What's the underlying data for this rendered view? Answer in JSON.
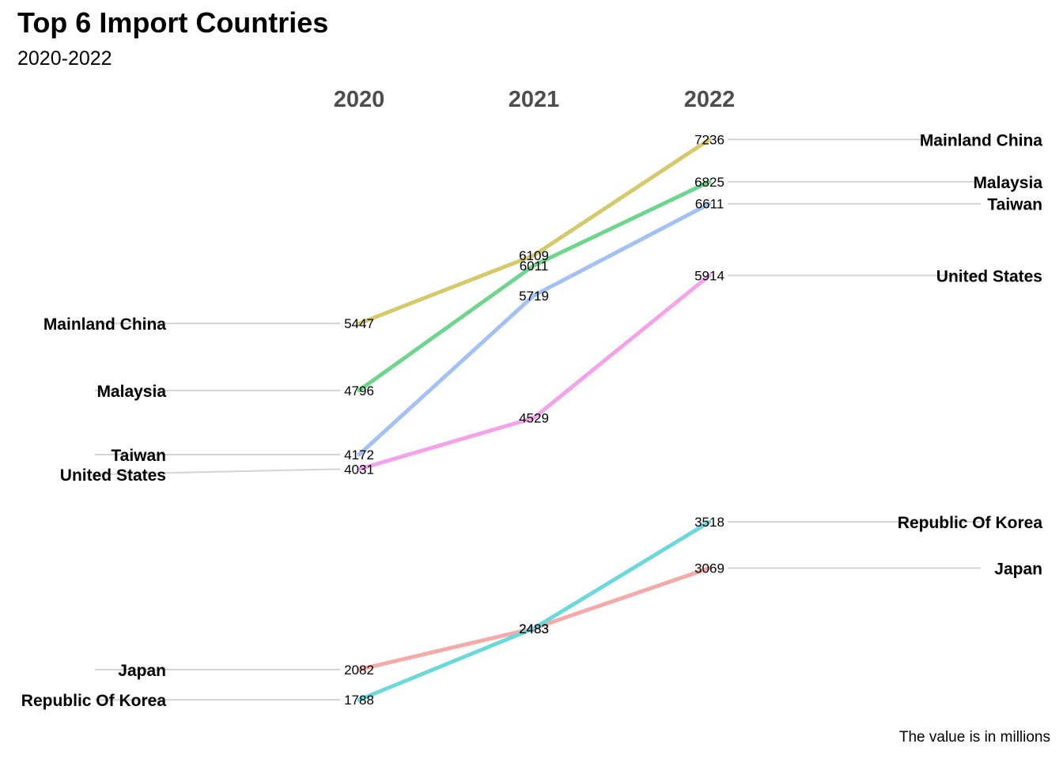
{
  "title": "Top 6 Import Countries",
  "subtitle": "2020-2022",
  "caption": "The value is in millions",
  "chart_data": {
    "type": "line",
    "title": "Top 6 Import Countries",
    "subtitle": "2020-2022",
    "categories": [
      "2020",
      "2021",
      "2022"
    ],
    "series": [
      {
        "name": "Mainland China",
        "values": [
          5447,
          6109,
          7236
        ],
        "color": "#D4C96B"
      },
      {
        "name": "Malaysia",
        "values": [
          4796,
          6011,
          6825
        ],
        "color": "#6FD58E"
      },
      {
        "name": "Taiwan",
        "values": [
          4172,
          5719,
          6611
        ],
        "color": "#A3C1F5"
      },
      {
        "name": "United States",
        "values": [
          4031,
          4529,
          5914
        ],
        "color": "#F4A3EA"
      },
      {
        "name": "Japan",
        "values": [
          2082,
          2483,
          3069
        ],
        "color": "#F5AAAA"
      },
      {
        "name": "Republic Of Korea",
        "values": [
          1788,
          2483,
          3518
        ],
        "color": "#6DD8DB"
      }
    ],
    "caption": "The value is in millions",
    "grid": false,
    "legend": "none"
  }
}
